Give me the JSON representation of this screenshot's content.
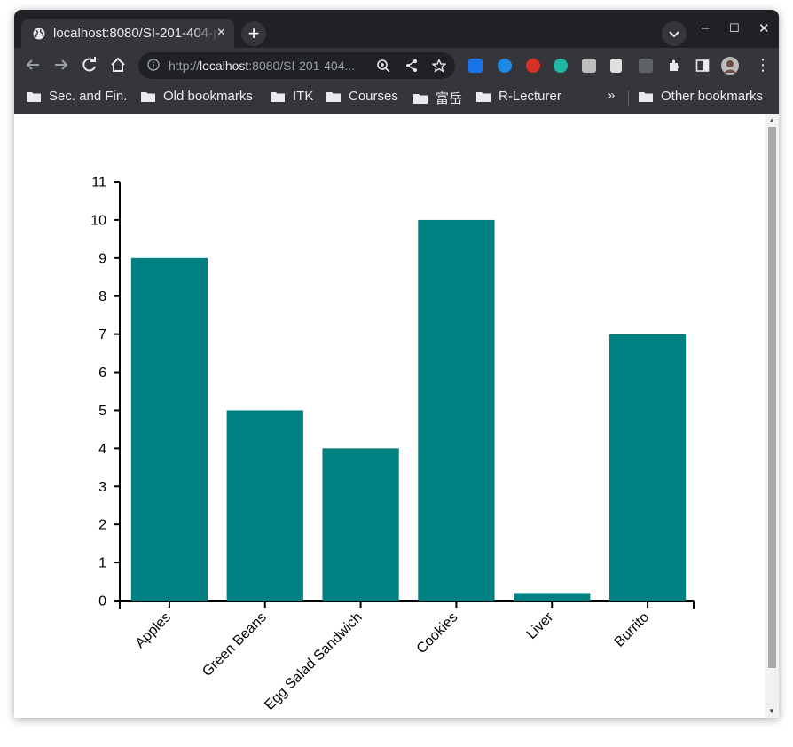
{
  "browser": {
    "tab_title": "localhost:8080/SI-201-404-proj",
    "tab_close": "×",
    "new_tab": "+",
    "omnibox_prefix": "http://",
    "omnibox_host": "localhost",
    "omnibox_rest": ":8080/SI-201-404...",
    "window_controls": {
      "minimize": "–",
      "maximize": "☐",
      "close": "✕"
    },
    "more_menu": "⋮"
  },
  "bookmarks": {
    "items": [
      "Sec. and Fin.",
      "Old bookmarks",
      "ITK",
      "Courses",
      "富岳",
      "R-Lecturer"
    ],
    "overflow": "»",
    "other": "Other bookmarks"
  },
  "colors": {
    "bar": "#008080",
    "chrome_dark": "#202124",
    "chrome_mid": "#35363a"
  },
  "chart_data": {
    "type": "bar",
    "categories": [
      "Apples",
      "Green Beans",
      "Egg Salad Sandwich",
      "Cookies",
      "Liver",
      "Burrito"
    ],
    "values": [
      9,
      5,
      4,
      10,
      0.2,
      7
    ],
    "ylim": [
      0,
      11
    ],
    "yticks": [
      0,
      1,
      2,
      3,
      4,
      5,
      6,
      7,
      8,
      9,
      10,
      11
    ],
    "title": "",
    "xlabel": "",
    "ylabel": "",
    "grid": false,
    "bar_color": "#008080"
  }
}
